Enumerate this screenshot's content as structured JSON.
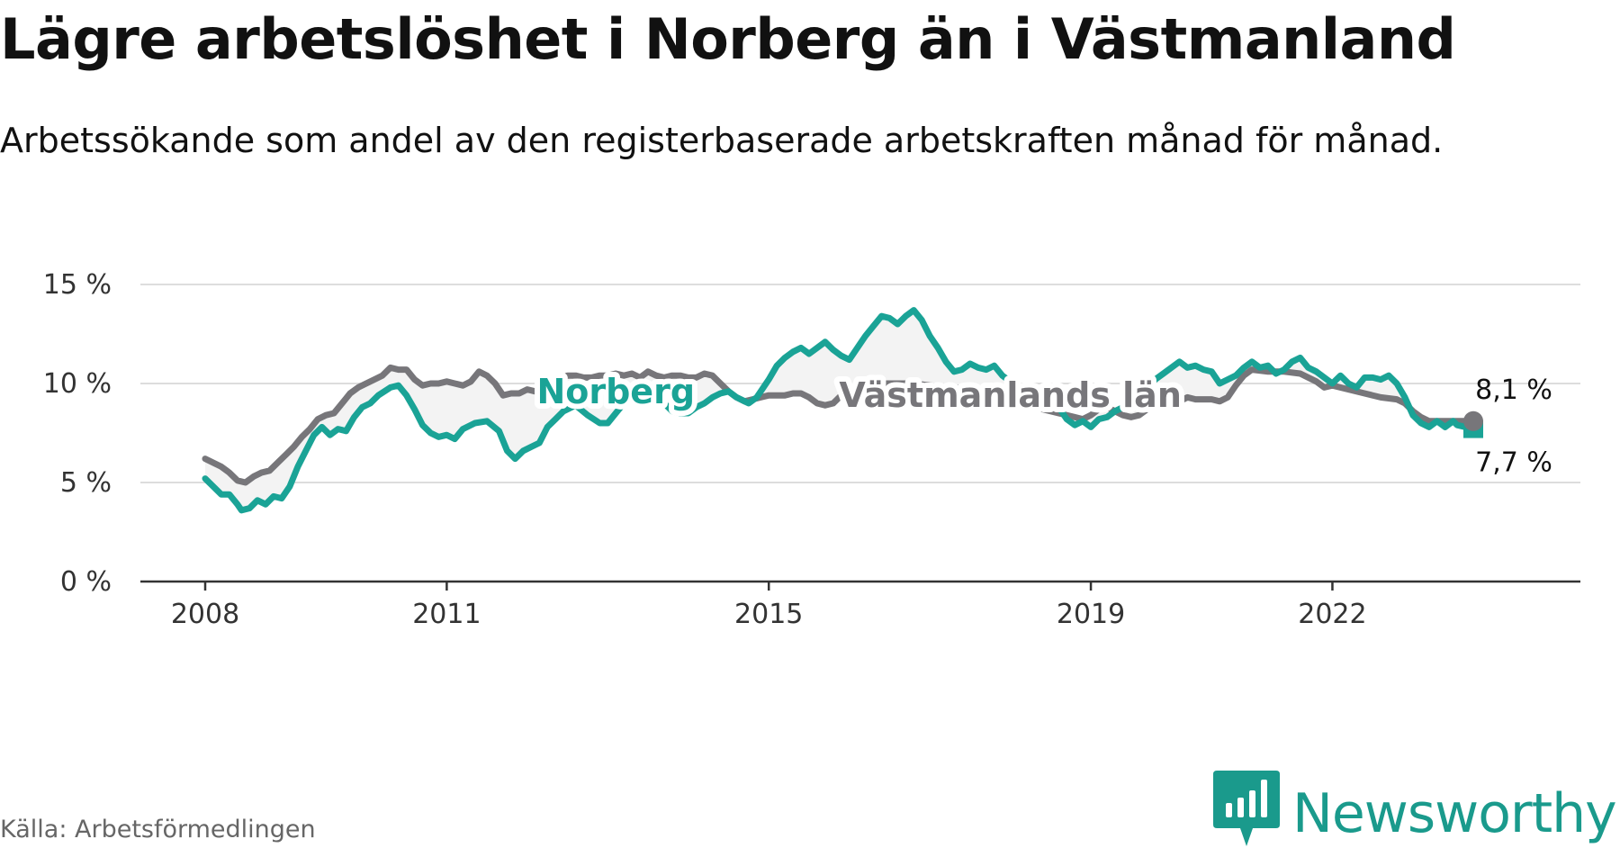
{
  "header": {
    "title": "Lägre arbetslöshet i Norberg än i Västmanland",
    "subtitle": "Arbetssökande som andel av den registerbaserade arbetskraften månad för månad."
  },
  "source": "Källa: Arbetsförmedlingen",
  "brand": {
    "name": "Newsworthy",
    "color": "#1a9a8c",
    "icon": "bar-chart-badge-icon"
  },
  "colors": {
    "norberg": "#1aa396",
    "lan": "#77767a",
    "fill": "#f3f3f3",
    "grid": "#dddddd",
    "axis": "#333333"
  },
  "chart_data": {
    "type": "line",
    "x_axis": {
      "ticks": [
        2008,
        2011,
        2015,
        2019,
        2022
      ],
      "tick_labels": [
        "2008",
        "2011",
        "2015",
        "2019",
        "2022"
      ]
    },
    "y_axis": {
      "ticks": [
        0,
        5,
        10,
        15
      ],
      "tick_labels": [
        "0 %",
        "5 %",
        "10 %",
        "15 %"
      ],
      "ylim": [
        0,
        15
      ]
    },
    "grid": true,
    "series": [
      {
        "name": "Norberg",
        "color": "#1aa396",
        "end_label": "7,7 %",
        "points": [
          [
            2008.0,
            5.2
          ],
          [
            2008.1,
            4.8
          ],
          [
            2008.2,
            4.4
          ],
          [
            2008.3,
            4.4
          ],
          [
            2008.4,
            3.9
          ],
          [
            2008.45,
            3.6
          ],
          [
            2008.55,
            3.7
          ],
          [
            2008.65,
            4.1
          ],
          [
            2008.75,
            3.9
          ],
          [
            2008.85,
            4.3
          ],
          [
            2008.95,
            4.2
          ],
          [
            2009.05,
            4.8
          ],
          [
            2009.15,
            5.8
          ],
          [
            2009.25,
            6.6
          ],
          [
            2009.35,
            7.4
          ],
          [
            2009.45,
            7.8
          ],
          [
            2009.55,
            7.4
          ],
          [
            2009.65,
            7.7
          ],
          [
            2009.75,
            7.6
          ],
          [
            2009.85,
            8.3
          ],
          [
            2009.95,
            8.8
          ],
          [
            2010.05,
            9.0
          ],
          [
            2010.15,
            9.4
          ],
          [
            2010.3,
            9.8
          ],
          [
            2010.4,
            9.9
          ],
          [
            2010.5,
            9.4
          ],
          [
            2010.6,
            8.7
          ],
          [
            2010.7,
            7.9
          ],
          [
            2010.8,
            7.5
          ],
          [
            2010.9,
            7.3
          ],
          [
            2011.0,
            7.4
          ],
          [
            2011.1,
            7.2
          ],
          [
            2011.2,
            7.7
          ],
          [
            2011.35,
            8.0
          ],
          [
            2011.5,
            8.1
          ],
          [
            2011.65,
            7.6
          ],
          [
            2011.75,
            6.6
          ],
          [
            2011.85,
            6.2
          ],
          [
            2011.95,
            6.6
          ],
          [
            2012.05,
            6.8
          ],
          [
            2012.15,
            7.0
          ],
          [
            2012.25,
            7.8
          ],
          [
            2012.35,
            8.2
          ],
          [
            2012.45,
            8.6
          ],
          [
            2012.6,
            8.9
          ],
          [
            2012.75,
            8.4
          ],
          [
            2012.9,
            8.0
          ],
          [
            2013.0,
            8.0
          ],
          [
            2013.1,
            8.5
          ],
          [
            2013.2,
            9.0
          ],
          [
            2013.35,
            9.2
          ],
          [
            2013.5,
            9.4
          ],
          [
            2013.6,
            9.2
          ],
          [
            2013.7,
            9.0
          ],
          [
            2013.8,
            8.6
          ],
          [
            2013.9,
            8.5
          ],
          [
            2014.0,
            8.5
          ],
          [
            2014.1,
            8.8
          ],
          [
            2014.2,
            9.0
          ],
          [
            2014.3,
            9.3
          ],
          [
            2014.4,
            9.5
          ],
          [
            2014.5,
            9.6
          ],
          [
            2014.6,
            9.3
          ],
          [
            2014.7,
            9.1
          ],
          [
            2014.75,
            9.0
          ],
          [
            2014.85,
            9.3
          ],
          [
            2015.0,
            10.2
          ],
          [
            2015.1,
            10.9
          ],
          [
            2015.2,
            11.3
          ],
          [
            2015.3,
            11.6
          ],
          [
            2015.4,
            11.8
          ],
          [
            2015.5,
            11.5
          ],
          [
            2015.6,
            11.8
          ],
          [
            2015.7,
            12.1
          ],
          [
            2015.8,
            11.7
          ],
          [
            2015.9,
            11.4
          ],
          [
            2016.0,
            11.2
          ],
          [
            2016.1,
            11.8
          ],
          [
            2016.2,
            12.4
          ],
          [
            2016.3,
            12.9
          ],
          [
            2016.4,
            13.4
          ],
          [
            2016.5,
            13.3
          ],
          [
            2016.6,
            13.0
          ],
          [
            2016.7,
            13.4
          ],
          [
            2016.8,
            13.7
          ],
          [
            2016.9,
            13.2
          ],
          [
            2017.0,
            12.4
          ],
          [
            2017.1,
            11.8
          ],
          [
            2017.2,
            11.1
          ],
          [
            2017.3,
            10.6
          ],
          [
            2017.4,
            10.7
          ],
          [
            2017.5,
            11.0
          ],
          [
            2017.6,
            10.8
          ],
          [
            2017.7,
            10.7
          ],
          [
            2017.8,
            10.9
          ],
          [
            2017.9,
            10.4
          ],
          [
            2018.0,
            10.1
          ],
          [
            2018.2,
            9.6
          ],
          [
            2018.4,
            9.2
          ],
          [
            2018.6,
            8.8
          ],
          [
            2018.7,
            8.2
          ],
          [
            2018.8,
            7.9
          ],
          [
            2018.9,
            8.1
          ],
          [
            2019.0,
            7.8
          ],
          [
            2019.1,
            8.2
          ],
          [
            2019.2,
            8.3
          ],
          [
            2019.3,
            8.6
          ],
          [
            2019.4,
            8.8
          ],
          [
            2019.5,
            9.1
          ],
          [
            2019.6,
            9.5
          ],
          [
            2019.7,
            9.8
          ],
          [
            2019.8,
            10.2
          ],
          [
            2019.9,
            10.5
          ],
          [
            2020.0,
            10.8
          ],
          [
            2020.1,
            11.1
          ],
          [
            2020.2,
            10.8
          ],
          [
            2020.3,
            10.9
          ],
          [
            2020.4,
            10.7
          ],
          [
            2020.5,
            10.6
          ],
          [
            2020.6,
            10.0
          ],
          [
            2020.7,
            10.2
          ],
          [
            2020.8,
            10.4
          ],
          [
            2020.9,
            10.8
          ],
          [
            2021.0,
            11.1
          ],
          [
            2021.1,
            10.8
          ],
          [
            2021.2,
            10.9
          ],
          [
            2021.3,
            10.5
          ],
          [
            2021.4,
            10.7
          ],
          [
            2021.5,
            11.1
          ],
          [
            2021.6,
            11.3
          ],
          [
            2021.7,
            10.8
          ],
          [
            2021.8,
            10.6
          ],
          [
            2021.9,
            10.3
          ],
          [
            2022.0,
            10.0
          ],
          [
            2022.1,
            10.4
          ],
          [
            2022.2,
            10.0
          ],
          [
            2022.3,
            9.8
          ],
          [
            2022.4,
            10.3
          ],
          [
            2022.5,
            10.3
          ],
          [
            2022.6,
            10.2
          ],
          [
            2022.7,
            10.4
          ],
          [
            2022.8,
            10.0
          ],
          [
            2022.9,
            9.3
          ],
          [
            2023.0,
            8.4
          ],
          [
            2023.1,
            8.0
          ],
          [
            2023.2,
            7.8
          ],
          [
            2023.3,
            8.1
          ],
          [
            2023.4,
            7.8
          ],
          [
            2023.5,
            8.1
          ],
          [
            2023.55,
            7.9
          ],
          [
            2023.65,
            7.8
          ],
          [
            2023.75,
            7.7
          ]
        ]
      },
      {
        "name": "Västmanlands län",
        "color": "#77767a",
        "end_label": "8,1 %",
        "points": [
          [
            2008.0,
            6.2
          ],
          [
            2008.1,
            6.0
          ],
          [
            2008.2,
            5.8
          ],
          [
            2008.3,
            5.5
          ],
          [
            2008.4,
            5.1
          ],
          [
            2008.5,
            5.0
          ],
          [
            2008.6,
            5.3
          ],
          [
            2008.7,
            5.5
          ],
          [
            2008.8,
            5.6
          ],
          [
            2008.9,
            6.0
          ],
          [
            2009.0,
            6.4
          ],
          [
            2009.1,
            6.8
          ],
          [
            2009.2,
            7.3
          ],
          [
            2009.3,
            7.7
          ],
          [
            2009.4,
            8.2
          ],
          [
            2009.5,
            8.4
          ],
          [
            2009.6,
            8.5
          ],
          [
            2009.7,
            9.0
          ],
          [
            2009.8,
            9.5
          ],
          [
            2009.9,
            9.8
          ],
          [
            2010.0,
            10.0
          ],
          [
            2010.1,
            10.2
          ],
          [
            2010.2,
            10.4
          ],
          [
            2010.3,
            10.8
          ],
          [
            2010.4,
            10.7
          ],
          [
            2010.5,
            10.7
          ],
          [
            2010.6,
            10.2
          ],
          [
            2010.7,
            9.9
          ],
          [
            2010.8,
            10.0
          ],
          [
            2010.9,
            10.0
          ],
          [
            2011.0,
            10.1
          ],
          [
            2011.1,
            10.0
          ],
          [
            2011.2,
            9.9
          ],
          [
            2011.3,
            10.1
          ],
          [
            2011.4,
            10.6
          ],
          [
            2011.5,
            10.4
          ],
          [
            2011.6,
            10.0
          ],
          [
            2011.7,
            9.4
          ],
          [
            2011.8,
            9.5
          ],
          [
            2011.9,
            9.5
          ],
          [
            2012.0,
            9.7
          ],
          [
            2012.1,
            9.6
          ],
          [
            2012.2,
            9.7
          ],
          [
            2012.3,
            10.0
          ],
          [
            2012.4,
            10.2
          ],
          [
            2012.5,
            10.4
          ],
          [
            2012.6,
            10.4
          ],
          [
            2012.7,
            10.3
          ],
          [
            2012.8,
            10.3
          ],
          [
            2012.9,
            10.4
          ],
          [
            2013.0,
            10.4
          ],
          [
            2013.1,
            10.5
          ],
          [
            2013.2,
            10.4
          ],
          [
            2013.3,
            10.5
          ],
          [
            2013.4,
            10.3
          ],
          [
            2013.5,
            10.6
          ],
          [
            2013.6,
            10.4
          ],
          [
            2013.7,
            10.3
          ],
          [
            2013.8,
            10.4
          ],
          [
            2013.9,
            10.4
          ],
          [
            2014.0,
            10.3
          ],
          [
            2014.1,
            10.3
          ],
          [
            2014.2,
            10.5
          ],
          [
            2014.3,
            10.4
          ],
          [
            2014.4,
            10.0
          ],
          [
            2014.5,
            9.6
          ],
          [
            2014.6,
            9.3
          ],
          [
            2014.7,
            9.1
          ],
          [
            2014.8,
            9.2
          ],
          [
            2014.9,
            9.3
          ],
          [
            2015.0,
            9.4
          ],
          [
            2015.1,
            9.4
          ],
          [
            2015.2,
            9.4
          ],
          [
            2015.3,
            9.5
          ],
          [
            2015.4,
            9.5
          ],
          [
            2015.5,
            9.3
          ],
          [
            2015.6,
            9.0
          ],
          [
            2015.7,
            8.9
          ],
          [
            2015.8,
            9.0
          ],
          [
            2015.9,
            9.4
          ],
          [
            2016.0,
            9.6
          ],
          [
            2016.2,
            9.9
          ],
          [
            2016.4,
            10.0
          ],
          [
            2016.6,
            10.0
          ],
          [
            2016.8,
            10.0
          ],
          [
            2017.0,
            9.9
          ],
          [
            2017.3,
            9.8
          ],
          [
            2017.6,
            9.7
          ],
          [
            2017.9,
            9.5
          ],
          [
            2018.0,
            9.4
          ],
          [
            2018.2,
            9.0
          ],
          [
            2018.4,
            8.7
          ],
          [
            2018.6,
            8.5
          ],
          [
            2018.8,
            8.3
          ],
          [
            2018.9,
            8.2
          ],
          [
            2019.0,
            8.4
          ],
          [
            2019.1,
            8.7
          ],
          [
            2019.2,
            8.8
          ],
          [
            2019.3,
            8.6
          ],
          [
            2019.4,
            8.4
          ],
          [
            2019.5,
            8.3
          ],
          [
            2019.6,
            8.4
          ],
          [
            2019.7,
            8.7
          ],
          [
            2019.8,
            9.0
          ],
          [
            2019.9,
            9.1
          ],
          [
            2020.0,
            9.0
          ],
          [
            2020.1,
            9.1
          ],
          [
            2020.2,
            9.3
          ],
          [
            2020.3,
            9.2
          ],
          [
            2020.4,
            9.2
          ],
          [
            2020.5,
            9.2
          ],
          [
            2020.6,
            9.1
          ],
          [
            2020.7,
            9.3
          ],
          [
            2020.8,
            9.9
          ],
          [
            2020.9,
            10.4
          ],
          [
            2021.0,
            10.7
          ],
          [
            2021.2,
            10.6
          ],
          [
            2021.4,
            10.6
          ],
          [
            2021.6,
            10.5
          ],
          [
            2021.8,
            10.1
          ],
          [
            2021.9,
            9.8
          ],
          [
            2022.0,
            9.9
          ],
          [
            2022.2,
            9.7
          ],
          [
            2022.4,
            9.5
          ],
          [
            2022.6,
            9.3
          ],
          [
            2022.8,
            9.2
          ],
          [
            2022.9,
            9.0
          ],
          [
            2023.0,
            8.6
          ],
          [
            2023.1,
            8.3
          ],
          [
            2023.2,
            8.1
          ],
          [
            2023.4,
            8.1
          ],
          [
            2023.6,
            8.1
          ],
          [
            2023.75,
            8.1
          ]
        ]
      }
    ],
    "labels": [
      {
        "series": "Norberg",
        "text": "Norberg",
        "x": 2013.1,
        "y": 9.6
      },
      {
        "series": "Västmanlands län",
        "text": "Västmanlands län",
        "x": 2018.0,
        "y": 9.4
      }
    ]
  }
}
